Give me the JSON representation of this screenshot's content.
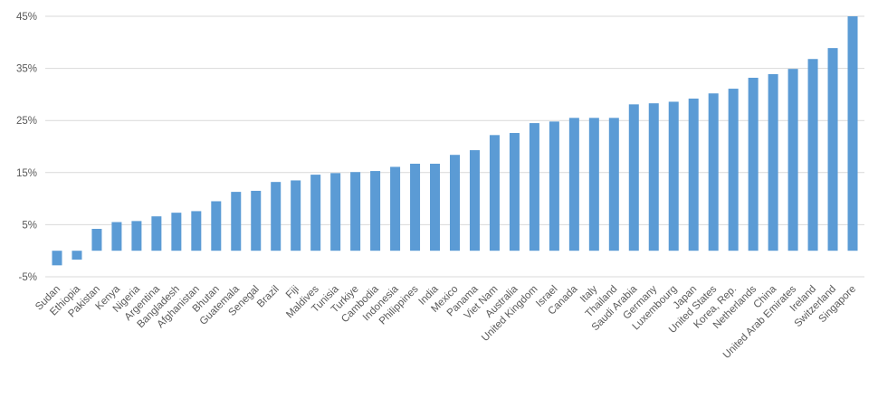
{
  "chart_data": {
    "type": "bar",
    "categories": [
      "Sudan",
      "Ethiopia",
      "Pakistan",
      "Kenya",
      "Nigeria",
      "Argentina",
      "Bangladesh",
      "Afghanistan",
      "Bhutan",
      "Guatemala",
      "Senegal",
      "Brazil",
      "Fiji",
      "Maldives",
      "Tunisia",
      "Turkiye",
      "Cambodia",
      "Indonesia",
      "Philippines",
      "India",
      "Mexico",
      "Panama",
      "Viet Nam",
      "Australia",
      "United Kingdom",
      "Israel",
      "Canada",
      "Italy",
      "Thailand",
      "Saudi Arabia",
      "Germany",
      "Luxembourg",
      "Japan",
      "United States",
      "Korea, Rep.",
      "Netherlands",
      "China",
      "United Arab Emirates",
      "Ireland",
      "Switzerland",
      "Singapore"
    ],
    "values": [
      -2.8,
      -1.7,
      4.2,
      5.5,
      5.7,
      6.6,
      7.3,
      7.6,
      9.5,
      11.3,
      11.5,
      13.2,
      13.5,
      14.6,
      14.9,
      15.1,
      15.3,
      16.1,
      16.7,
      16.7,
      18.4,
      19.3,
      22.2,
      22.6,
      24.5,
      24.8,
      25.5,
      25.5,
      25.5,
      28.1,
      28.3,
      28.6,
      29.2,
      30.2,
      31.1,
      33.2,
      33.9,
      34.9,
      36.8,
      38.9,
      45.0
    ],
    "color": "#5b9bd5",
    "ylim": [
      -5,
      45
    ],
    "yticks": [
      {
        "value": -5,
        "label": "-5%"
      },
      {
        "value": 5,
        "label": "5%"
      },
      {
        "value": 15,
        "label": "15%"
      },
      {
        "value": 25,
        "label": "25%"
      },
      {
        "value": 35,
        "label": "35%"
      },
      {
        "value": 45,
        "label": "45%"
      }
    ],
    "grid": true
  }
}
